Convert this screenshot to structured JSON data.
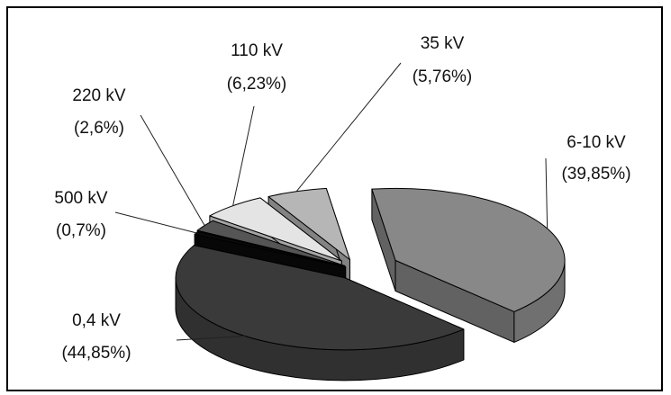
{
  "chart_data": {
    "type": "pie",
    "title": "",
    "categories": [
      "6-10 kV",
      "0,4 kV",
      "500 kV",
      "220 kV",
      "110 kV",
      "35 kV"
    ],
    "values": [
      39.85,
      44.85,
      0.7,
      2.6,
      6.23,
      5.76
    ],
    "labels": [
      {
        "name": "6-10 kV",
        "pct": "(39,85%)"
      },
      {
        "name": "0,4 kV",
        "pct": "(44,85%)"
      },
      {
        "name": "500 kV",
        "pct": "(0,7%)"
      },
      {
        "name": "220 kV",
        "pct": "(2,6%)"
      },
      {
        "name": "110 kV",
        "pct": "(6,23%)"
      },
      {
        "name": "35 kV",
        "pct": "(5,76%)"
      }
    ],
    "colors": [
      "#888888",
      "#3a3a3a",
      "#0a0a0a",
      "#555555",
      "#e4e4e4",
      "#b6b6b6"
    ],
    "exploded": true,
    "three_d": true
  }
}
